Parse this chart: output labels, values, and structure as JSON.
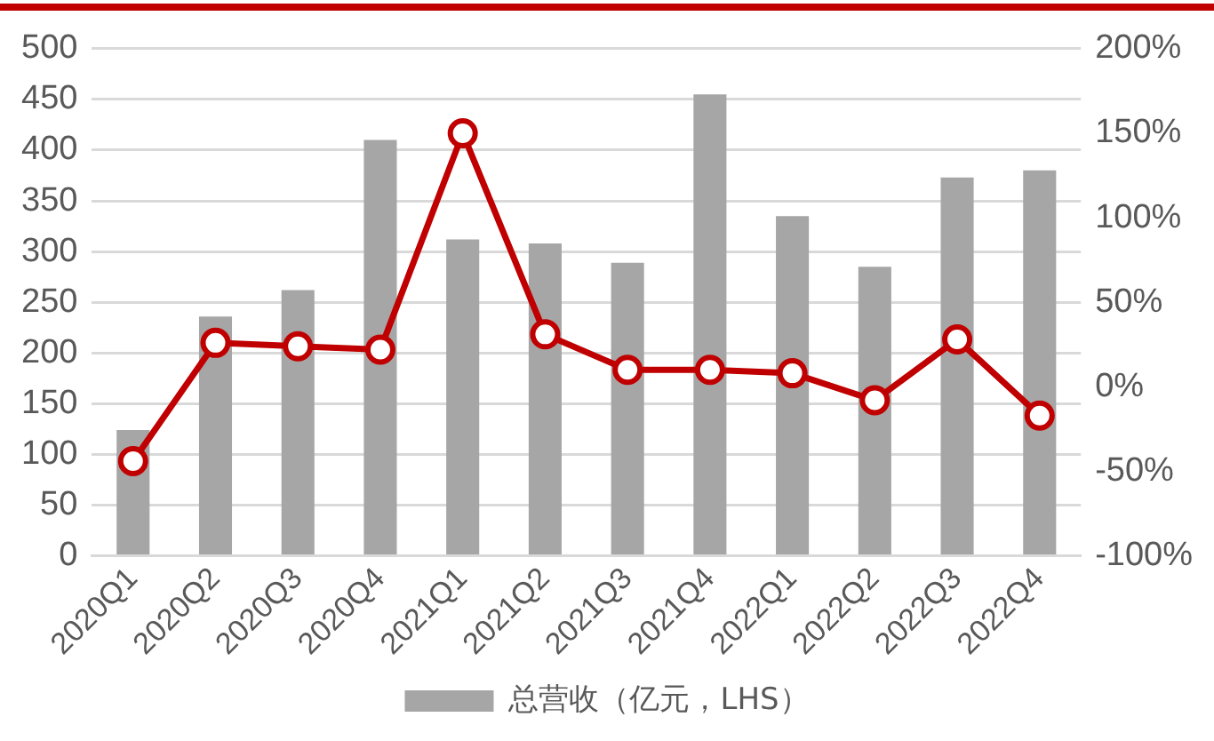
{
  "chart_data": {
    "type": "bar",
    "categories": [
      "2020Q1",
      "2020Q2",
      "2020Q3",
      "2020Q4",
      "2021Q1",
      "2021Q2",
      "2021Q3",
      "2021Q4",
      "2022Q1",
      "2022Q2",
      "2022Q3",
      "2022Q4"
    ],
    "series": [
      {
        "name": "总营收（亿元，LHS）",
        "color": "#a6a6a6",
        "values": [
          124,
          236,
          262,
          410,
          312,
          308,
          289,
          455,
          335,
          285,
          373,
          380
        ]
      },
      {
        "type": "line",
        "axis": "y2",
        "color": "#c00000",
        "marker": "circle",
        "values": [
          -44,
          26,
          24,
          22,
          150,
          31,
          10,
          10,
          8,
          -8,
          28,
          -17
        ]
      }
    ],
    "ylim": [
      0,
      500
    ],
    "yticks": [
      0,
      50,
      100,
      150,
      200,
      250,
      300,
      350,
      400,
      450,
      500
    ],
    "y2lim": [
      -100,
      200
    ],
    "y2ticks": [
      {
        "value": -100,
        "label": "-100%"
      },
      {
        "value": -50,
        "label": "-50%"
      },
      {
        "value": 0,
        "label": "0%"
      },
      {
        "value": 50,
        "label": "50%"
      },
      {
        "value": 100,
        "label": "100%"
      },
      {
        "value": 150,
        "label": "150%"
      },
      {
        "value": 200,
        "label": "200%"
      }
    ],
    "grid": "y",
    "legend": "bottom"
  }
}
